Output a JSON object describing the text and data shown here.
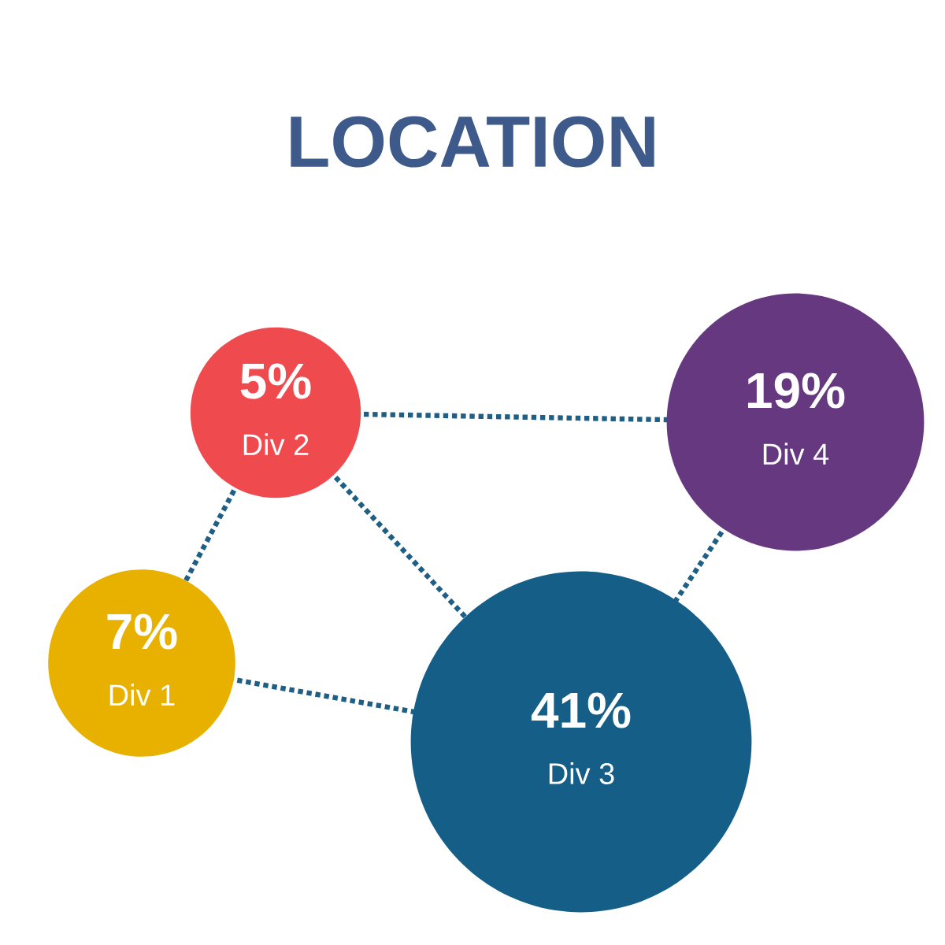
{
  "chart_data": {
    "type": "other",
    "title": "LOCATION",
    "categories": [
      "Div 1",
      "Div 2",
      "Div 3",
      "Div 4"
    ],
    "values": [
      7,
      5,
      41,
      19
    ],
    "value_labels": [
      "7%",
      "5%",
      "41%",
      "19%"
    ],
    "colors": [
      "#e8b100",
      "#ef4b4f",
      "#155e87",
      "#653880"
    ]
  }
}
